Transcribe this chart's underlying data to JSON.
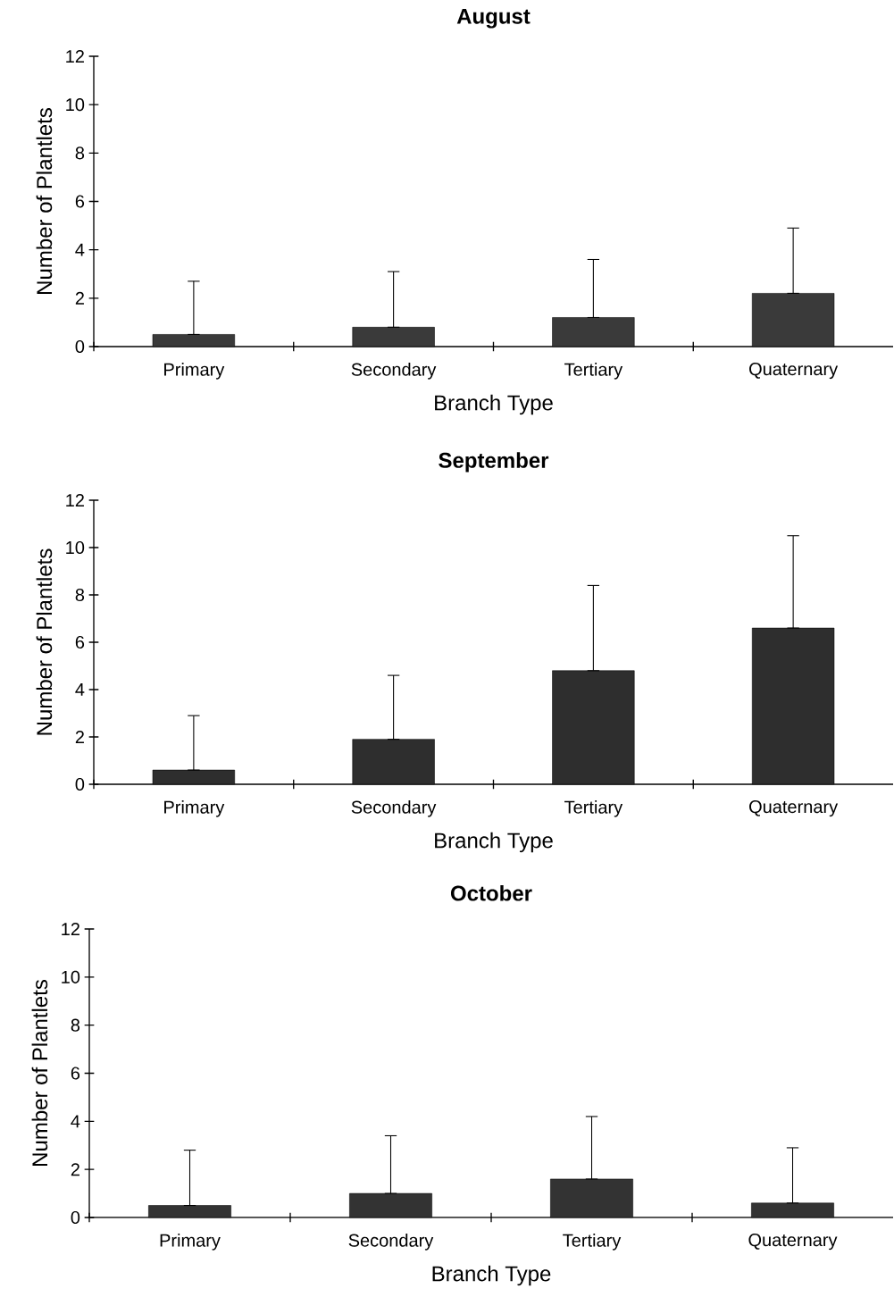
{
  "chart_data": [
    {
      "type": "bar",
      "title": "August",
      "xlabel": "Branch Type",
      "ylabel": "Number of Plantlets",
      "categories": [
        "Primary",
        "Secondary",
        "Tertiary",
        "Quaternary"
      ],
      "values": [
        0.5,
        0.8,
        1.2,
        2.2
      ],
      "errors": [
        [
          0.5,
          2.7
        ],
        [
          0.8,
          3.1
        ],
        [
          1.2,
          3.6
        ],
        [
          2.2,
          4.9
        ]
      ],
      "color": "#3a3a3a",
      "ylim": [
        0,
        12
      ],
      "yticks": [
        0,
        2,
        4,
        6,
        8,
        10,
        12
      ]
    },
    {
      "type": "bar",
      "title": "September",
      "xlabel": "Branch Type",
      "ylabel": "Number of Plantlets",
      "categories": [
        "Primary",
        "Secondary",
        "Tertiary",
        "Quaternary"
      ],
      "values": [
        0.6,
        1.9,
        4.8,
        6.6
      ],
      "errors": [
        [
          0.6,
          2.9
        ],
        [
          1.9,
          4.6
        ],
        [
          4.8,
          8.4
        ],
        [
          6.6,
          10.5
        ]
      ],
      "color": "#2e2e2e",
      "ylim": [
        0,
        12
      ],
      "yticks": [
        0,
        2,
        4,
        6,
        8,
        10,
        12
      ]
    },
    {
      "type": "bar",
      "title": "October",
      "xlabel": "Branch Type",
      "ylabel": "Number of Plantlets",
      "categories": [
        "Primary",
        "Secondary",
        "Tertiary",
        "Quaternary"
      ],
      "values": [
        0.5,
        1.0,
        1.6,
        0.6
      ],
      "errors": [
        [
          0.5,
          2.8
        ],
        [
          1.0,
          3.4
        ],
        [
          1.6,
          4.2
        ],
        [
          0.6,
          2.9
        ]
      ],
      "color": "#333333",
      "ylim": [
        0,
        12
      ],
      "yticks": [
        0,
        2,
        4,
        6,
        8,
        10,
        12
      ]
    }
  ]
}
